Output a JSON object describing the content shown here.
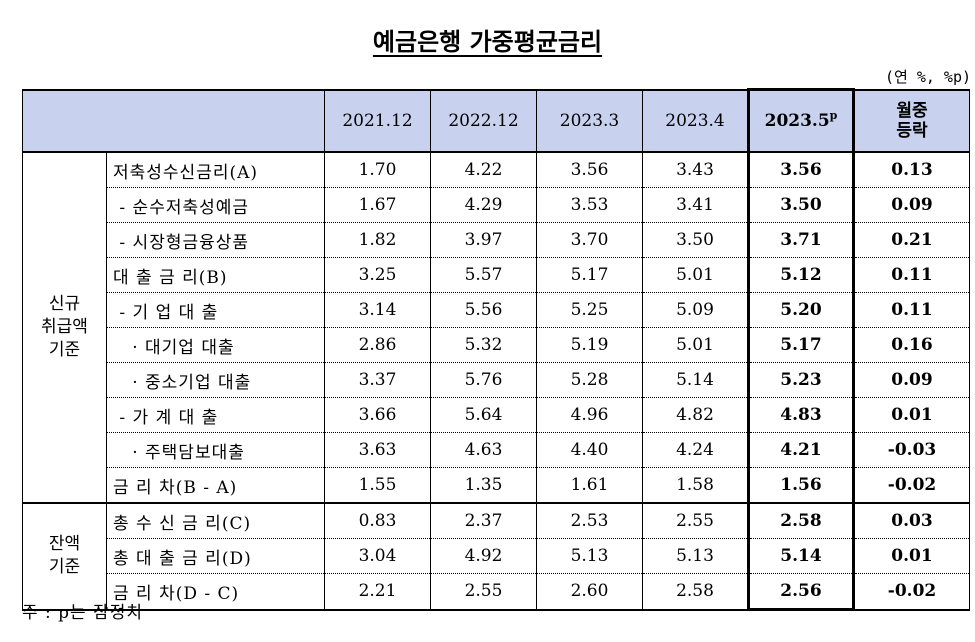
{
  "title": "예금은행 가중평균금리",
  "unit": "(연 %, %p)",
  "columns": [
    "2021.12",
    "2022.12",
    "2023.3",
    "2023.4",
    "2023.5",
    "월중\n등락"
  ],
  "prelim_mark": "p",
  "change_header": [
    "월중",
    "등락"
  ],
  "groups": [
    {
      "label": [
        "신규",
        "취급액",
        "기준"
      ],
      "rows": [
        {
          "label": "저축성수신금리(A)",
          "values": [
            "1.70",
            "4.22",
            "3.56",
            "3.43",
            "3.56",
            "0.13"
          ]
        },
        {
          "label": " - 순수저축성예금",
          "values": [
            "1.67",
            "4.29",
            "3.53",
            "3.41",
            "3.50",
            "0.09"
          ]
        },
        {
          "label": " - 시장형금융상품",
          "values": [
            "1.82",
            "3.97",
            "3.70",
            "3.50",
            "3.71",
            "0.21"
          ]
        },
        {
          "label": "대 출 금 리(B)",
          "values": [
            "3.25",
            "5.57",
            "5.17",
            "5.01",
            "5.12",
            "0.11"
          ]
        },
        {
          "label": " - 기 업 대 출",
          "values": [
            "3.14",
            "5.56",
            "5.25",
            "5.09",
            "5.20",
            "0.11"
          ]
        },
        {
          "label": "   · 대기업 대출",
          "values": [
            "2.86",
            "5.32",
            "5.19",
            "5.01",
            "5.17",
            "0.16"
          ]
        },
        {
          "label": "   · 중소기업 대출",
          "values": [
            "3.37",
            "5.76",
            "5.28",
            "5.14",
            "5.23",
            "0.09"
          ]
        },
        {
          "label": " - 가 계 대 출",
          "values": [
            "3.66",
            "5.64",
            "4.96",
            "4.82",
            "4.83",
            "0.01"
          ]
        },
        {
          "label": "   · 주택담보대출",
          "values": [
            "3.63",
            "4.63",
            "4.40",
            "4.24",
            "4.21",
            "-0.03"
          ]
        },
        {
          "label": "금 리 차(B - A)",
          "values": [
            "1.55",
            "1.35",
            "1.61",
            "1.58",
            "1.56",
            "-0.02"
          ]
        }
      ]
    },
    {
      "label": [
        "잔액",
        "기준"
      ],
      "rows": [
        {
          "label": "총 수 신 금 리(C)",
          "values": [
            "0.83",
            "2.37",
            "2.53",
            "2.55",
            "2.58",
            "0.03"
          ]
        },
        {
          "label": "총 대 출 금 리(D)",
          "values": [
            "3.04",
            "4.92",
            "5.13",
            "5.13",
            "5.14",
            "0.01"
          ]
        },
        {
          "label": "금 리 차(D - C)",
          "values": [
            "2.21",
            "2.55",
            "2.60",
            "2.58",
            "2.56",
            "-0.02"
          ]
        }
      ]
    }
  ],
  "note": "주 : p는 잠정치"
}
